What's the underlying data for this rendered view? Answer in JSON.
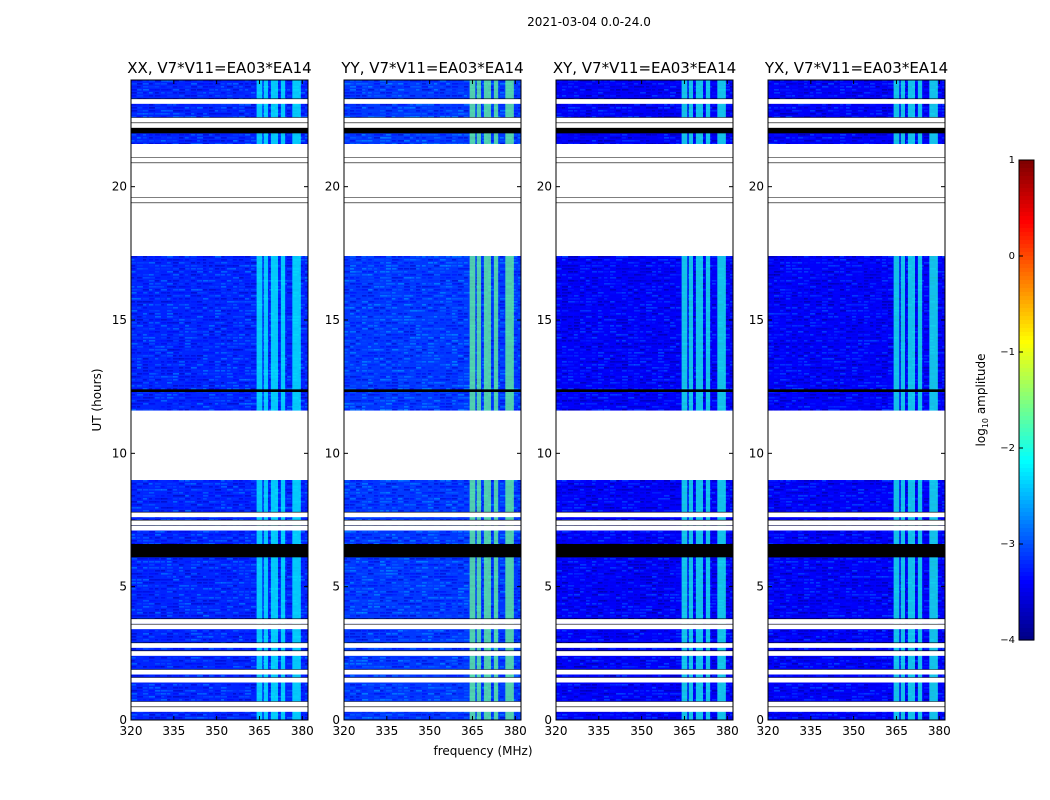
{
  "title": "2021-03-04 0.0-24.0",
  "chart_data": {
    "type": "heatmap",
    "xlabel": "frequency (MHz)",
    "ylabel": "UT (hours)",
    "xlim": [
      320,
      382
    ],
    "ylim": [
      0,
      24
    ],
    "xticks": [
      320,
      335,
      350,
      365,
      380
    ],
    "yticks": [
      0,
      5,
      10,
      15,
      20
    ],
    "colorbar": {
      "label": "log10 amplitude",
      "label_main": "log",
      "label_sub": "10",
      "label_rest": " amplitude",
      "range": [
        -4,
        1
      ],
      "ticks": [
        1,
        0,
        -1,
        -2,
        -3,
        -4
      ],
      "tick_labels": [
        "1",
        "0",
        "−1",
        "−2",
        "−3",
        "−4"
      ],
      "colormap": "jet"
    },
    "panels": [
      {
        "title": "XX, V7*V11=EA03*EA14",
        "base": -3.2,
        "band": -2.1
      },
      {
        "title": "YY, V7*V11=EA03*EA14",
        "base": -3.1,
        "band": -1.6
      },
      {
        "title": "XY, V7*V11=EA03*EA14",
        "base": -3.4,
        "band": -2.0
      },
      {
        "title": "YX, V7*V11=EA03*EA14",
        "base": -3.4,
        "band": -2.0
      }
    ],
    "data_blocks_hours": [
      [
        0.0,
        9.0
      ],
      [
        11.6,
        17.4
      ],
      [
        21.6,
        24.0
      ]
    ],
    "gaps_hours": [
      [
        9.0,
        11.6
      ],
      [
        17.4,
        21.6
      ]
    ],
    "line_rows_hours": [
      0.4,
      0.6,
      1.5,
      1.8,
      2.5,
      2.8,
      3.5,
      3.7,
      7.2,
      7.4,
      7.7,
      19.3,
      19.5,
      20.8,
      21.0,
      22.3,
      22.5,
      23.2
    ],
    "dark_rows_hours": [
      [
        6.1,
        6.6
      ],
      [
        12.3,
        12.4
      ],
      [
        22.0,
        22.5
      ]
    ],
    "rfi_band_mhz": [
      [
        364,
        366
      ],
      [
        366.5,
        368
      ],
      [
        369,
        371.5
      ],
      [
        372.5,
        374
      ],
      [
        376.5,
        379.5
      ]
    ]
  }
}
